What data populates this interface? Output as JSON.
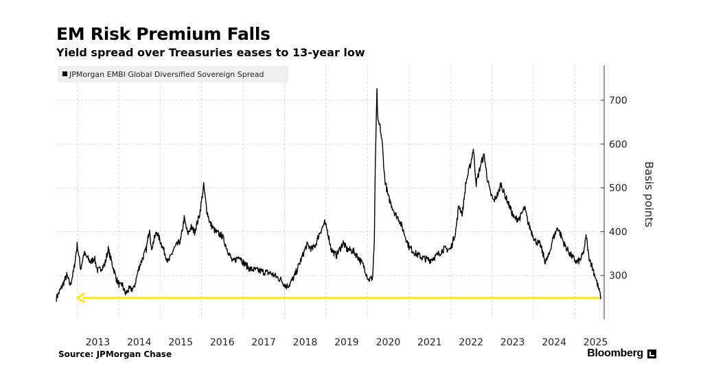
{
  "header": {
    "title": "EM Risk Premium Falls",
    "subtitle": "Yield spread over Treasuries eases to 13-year low"
  },
  "footer": {
    "source": "Source: JPMorgan Chase",
    "brand": "Bloomberg"
  },
  "chart_data": {
    "type": "line",
    "title": "EM Risk Premium Falls",
    "subtitle": "Yield spread over Treasuries eases to 13-year low",
    "xlabel": "",
    "ylabel": "Basis points",
    "x_tick_labels": [
      "2013",
      "2014",
      "2015",
      "2016",
      "2017",
      "2018",
      "2019",
      "2020",
      "2021",
      "2022",
      "2023",
      "2024",
      "2025"
    ],
    "y_ticks": [
      300,
      400,
      500,
      600,
      700
    ],
    "xlim": [
      "2012-07-01",
      "2025-08-15"
    ],
    "ylim": [
      200,
      780
    ],
    "legend_position": "top-left",
    "grid": true,
    "series": [
      {
        "name": "JPMorgan EMBI Global Diversified Sovereign Spread",
        "color": "#000000",
        "points": [
          [
            "2012-07-01",
            248
          ],
          [
            "2012-08-15",
            272
          ],
          [
            "2012-10-01",
            300
          ],
          [
            "2012-11-01",
            278
          ],
          [
            "2012-12-01",
            310
          ],
          [
            "2013-01-01",
            370
          ],
          [
            "2013-02-01",
            315
          ],
          [
            "2013-03-01",
            350
          ],
          [
            "2013-05-01",
            330
          ],
          [
            "2013-06-01",
            340
          ],
          [
            "2013-07-01",
            310
          ],
          [
            "2013-09-01",
            325
          ],
          [
            "2013-10-01",
            360
          ],
          [
            "2013-11-01",
            330
          ],
          [
            "2013-12-15",
            290
          ],
          [
            "2014-01-15",
            275
          ],
          [
            "2014-02-01",
            280
          ],
          [
            "2014-03-01",
            258
          ],
          [
            "2014-04-01",
            268
          ],
          [
            "2014-05-15",
            270
          ],
          [
            "2014-07-01",
            320
          ],
          [
            "2014-09-01",
            360
          ],
          [
            "2014-10-01",
            410
          ],
          [
            "2014-10-15",
            360
          ],
          [
            "2014-12-01",
            400
          ],
          [
            "2015-01-15",
            370
          ],
          [
            "2015-03-15",
            330
          ],
          [
            "2015-05-01",
            360
          ],
          [
            "2015-07-01",
            380
          ],
          [
            "2015-08-01",
            430
          ],
          [
            "2015-09-01",
            395
          ],
          [
            "2015-10-01",
            410
          ],
          [
            "2015-11-01",
            400
          ],
          [
            "2015-12-15",
            440
          ],
          [
            "2016-01-20",
            505
          ],
          [
            "2016-02-15",
            450
          ],
          [
            "2016-03-15",
            420
          ],
          [
            "2016-05-01",
            400
          ],
          [
            "2016-07-01",
            390
          ],
          [
            "2016-08-15",
            360
          ],
          [
            "2016-10-01",
            330
          ],
          [
            "2016-12-01",
            345
          ],
          [
            "2017-01-01",
            330
          ],
          [
            "2017-03-01",
            315
          ],
          [
            "2017-06-01",
            310
          ],
          [
            "2017-09-01",
            305
          ],
          [
            "2017-12-01",
            290
          ],
          [
            "2018-01-15",
            275
          ],
          [
            "2018-02-15",
            280
          ],
          [
            "2018-04-01",
            300
          ],
          [
            "2018-06-01",
            340
          ],
          [
            "2018-07-15",
            370
          ],
          [
            "2018-09-01",
            360
          ],
          [
            "2018-10-01",
            370
          ],
          [
            "2018-11-01",
            395
          ],
          [
            "2018-12-20",
            420
          ],
          [
            "2019-01-15",
            400
          ],
          [
            "2019-02-15",
            360
          ],
          [
            "2019-04-01",
            345
          ],
          [
            "2019-06-01",
            375
          ],
          [
            "2019-07-01",
            360
          ],
          [
            "2019-09-01",
            355
          ],
          [
            "2019-10-15",
            340
          ],
          [
            "2019-12-01",
            320
          ],
          [
            "2020-01-10",
            290
          ],
          [
            "2020-02-15",
            295
          ],
          [
            "2020-03-01",
            380
          ],
          [
            "2020-03-10",
            560
          ],
          [
            "2020-03-24",
            720
          ],
          [
            "2020-04-01",
            650
          ],
          [
            "2020-04-20",
            640
          ],
          [
            "2020-05-10",
            600
          ],
          [
            "2020-06-01",
            520
          ],
          [
            "2020-07-01",
            480
          ],
          [
            "2020-09-01",
            440
          ],
          [
            "2020-10-01",
            430
          ],
          [
            "2020-11-01",
            410
          ],
          [
            "2021-01-01",
            365
          ],
          [
            "2021-03-01",
            350
          ],
          [
            "2021-05-01",
            340
          ],
          [
            "2021-07-01",
            335
          ],
          [
            "2021-09-01",
            345
          ],
          [
            "2021-11-01",
            360
          ],
          [
            "2022-01-01",
            360
          ],
          [
            "2022-02-15",
            400
          ],
          [
            "2022-03-15",
            460
          ],
          [
            "2022-04-15",
            440
          ],
          [
            "2022-05-15",
            510
          ],
          [
            "2022-07-01",
            560
          ],
          [
            "2022-07-20",
            590
          ],
          [
            "2022-08-15",
            510
          ],
          [
            "2022-10-01",
            560
          ],
          [
            "2022-10-25",
            575
          ],
          [
            "2022-11-15",
            530
          ],
          [
            "2022-12-15",
            490
          ],
          [
            "2023-01-15",
            470
          ],
          [
            "2023-03-01",
            490
          ],
          [
            "2023-03-20",
            510
          ],
          [
            "2023-04-15",
            490
          ],
          [
            "2023-06-01",
            460
          ],
          [
            "2023-07-15",
            430
          ],
          [
            "2023-09-01",
            430
          ],
          [
            "2023-10-15",
            455
          ],
          [
            "2023-11-15",
            420
          ],
          [
            "2023-12-15",
            400
          ],
          [
            "2024-01-15",
            380
          ],
          [
            "2024-03-01",
            370
          ],
          [
            "2024-04-15",
            330
          ],
          [
            "2024-05-15",
            345
          ],
          [
            "2024-06-15",
            380
          ],
          [
            "2024-08-01",
            410
          ],
          [
            "2024-09-01",
            390
          ],
          [
            "2024-10-01",
            370
          ],
          [
            "2024-11-15",
            350
          ],
          [
            "2024-12-15",
            340
          ],
          [
            "2025-01-15",
            330
          ],
          [
            "2025-02-15",
            335
          ],
          [
            "2025-03-15",
            350
          ],
          [
            "2025-04-10",
            390
          ],
          [
            "2025-05-01",
            345
          ],
          [
            "2025-06-01",
            320
          ],
          [
            "2025-07-01",
            295
          ],
          [
            "2025-08-15",
            252
          ]
        ]
      }
    ],
    "annotations": [
      {
        "type": "arrow",
        "direction": "left",
        "color": "#ffe818",
        "value": 252,
        "from": "2025-08-15",
        "to": "2013-01-01"
      }
    ]
  }
}
